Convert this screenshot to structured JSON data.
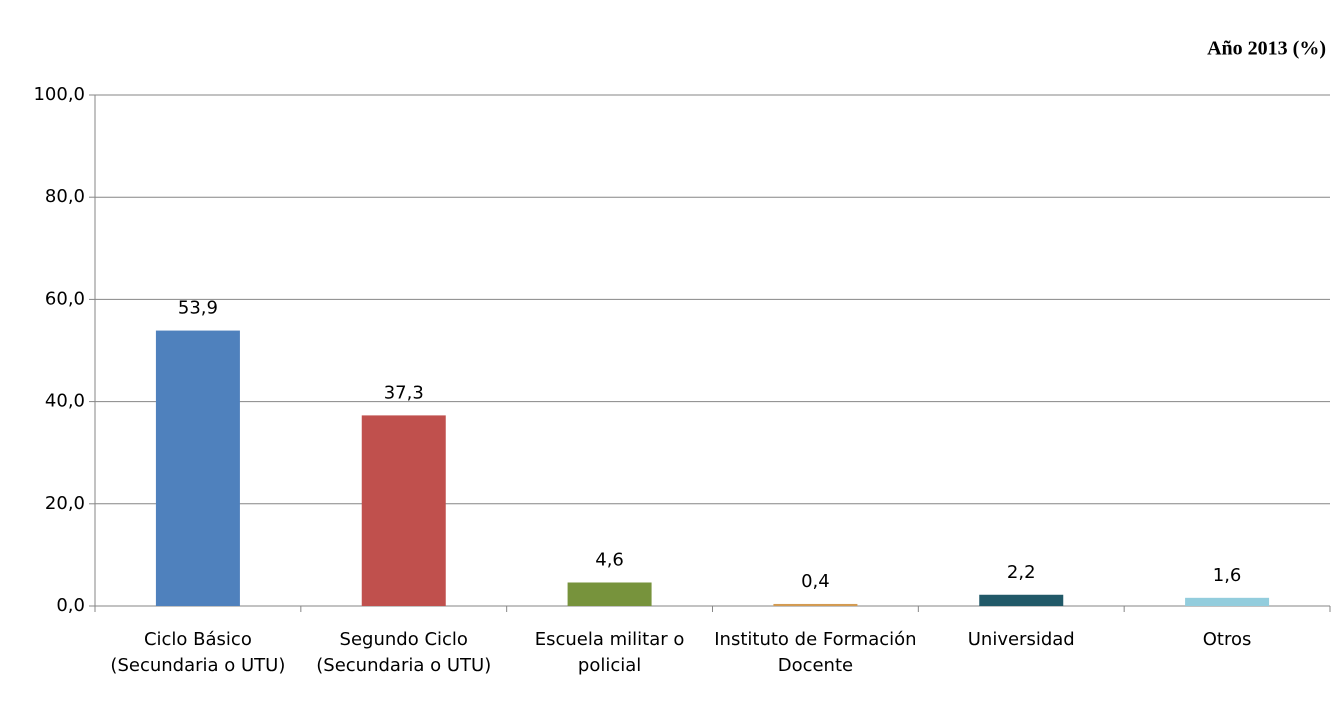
{
  "chart_data": {
    "type": "bar",
    "title": "Año 2013 (%)",
    "categories": [
      "Ciclo Básico (Secundaria o UTU)",
      "Segundo Ciclo (Secundaria o UTU)",
      "Escuela militar o policial",
      "Instituto de Formación Docente",
      "Universidad",
      "Otros"
    ],
    "values": [
      53.9,
      37.3,
      4.6,
      0.4,
      2.2,
      1.6
    ],
    "value_labels": [
      "53,9",
      "37,3",
      "4,6",
      "0,4",
      "2,2",
      "1,6"
    ],
    "colors": [
      "#4f81bd",
      "#c0504d",
      "#77933c",
      "#d39b52",
      "#215968",
      "#93cddd"
    ],
    "ylim": [
      0,
      100
    ],
    "yticks": [
      {
        "value": 0,
        "label": "0,0"
      },
      {
        "value": 20,
        "label": "20,0"
      },
      {
        "value": 40,
        "label": "40,0"
      },
      {
        "value": 60,
        "label": "60,0"
      },
      {
        "value": 80,
        "label": "80,0"
      },
      {
        "value": 100,
        "label": "100,0"
      }
    ],
    "grid": true
  }
}
